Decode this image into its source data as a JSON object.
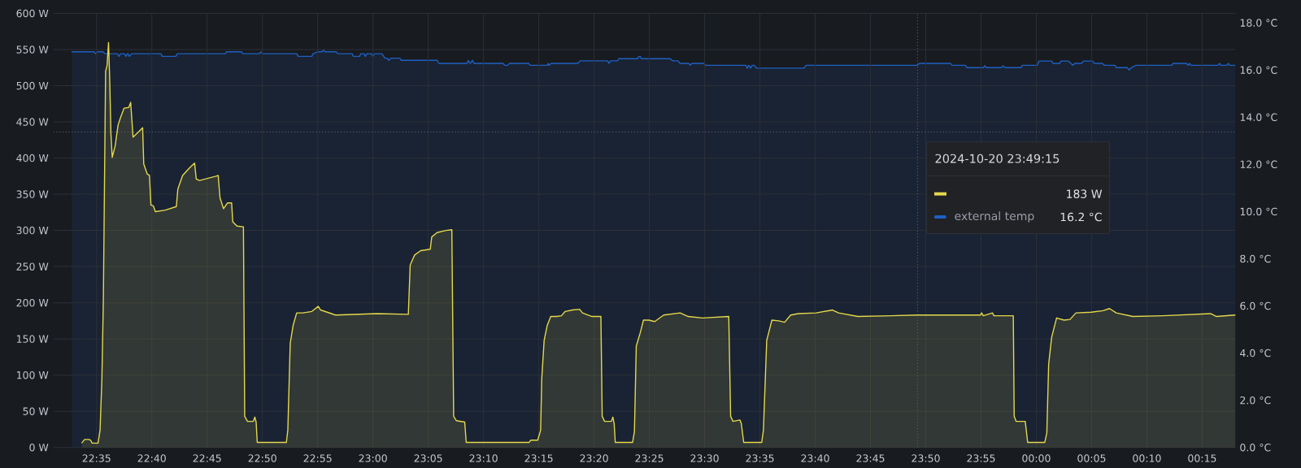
{
  "chart_data": {
    "type": "area",
    "xlim": [
      "2024-10-20T22:31:05",
      "2024-10-21T00:18:00"
    ],
    "xticks": [
      {
        "value": "2024-10-20T22:35",
        "label": "22:35"
      },
      {
        "value": "2024-10-20T22:40",
        "label": "22:40"
      },
      {
        "value": "2024-10-20T22:45",
        "label": "22:45"
      },
      {
        "value": "2024-10-20T22:50",
        "label": "22:50"
      },
      {
        "value": "2024-10-20T22:55",
        "label": "22:55"
      },
      {
        "value": "2024-10-20T23:00",
        "label": "23:00"
      },
      {
        "value": "2024-10-20T23:05",
        "label": "23:05"
      },
      {
        "value": "2024-10-20T23:10",
        "label": "23:10"
      },
      {
        "value": "2024-10-20T23:15",
        "label": "23:15"
      },
      {
        "value": "2024-10-20T23:20",
        "label": "23:20"
      },
      {
        "value": "2024-10-20T23:25",
        "label": "23:25"
      },
      {
        "value": "2024-10-20T23:30",
        "label": "23:30"
      },
      {
        "value": "2024-10-20T23:35",
        "label": "23:35"
      },
      {
        "value": "2024-10-20T23:40",
        "label": "23:40"
      },
      {
        "value": "2024-10-20T23:45",
        "label": "23:45"
      },
      {
        "value": "2024-10-20T23:50",
        "label": "23:50"
      },
      {
        "value": "2024-10-20T23:55",
        "label": "23:55"
      },
      {
        "value": "2024-10-21T00:00",
        "label": "00:00"
      },
      {
        "value": "2024-10-21T00:05",
        "label": "00:05"
      },
      {
        "value": "2024-10-21T00:10",
        "label": "00:10"
      },
      {
        "value": "2024-10-21T00:15",
        "label": "00:15"
      }
    ],
    "ylim": [
      0,
      600
    ],
    "yticks": [
      {
        "value": 0,
        "label": "0 W"
      },
      {
        "value": 50,
        "label": "50 W"
      },
      {
        "value": 100,
        "label": "100 W"
      },
      {
        "value": 150,
        "label": "150 W"
      },
      {
        "value": 200,
        "label": "200 W"
      },
      {
        "value": 250,
        "label": "250 W"
      },
      {
        "value": 300,
        "label": "300 W"
      },
      {
        "value": 350,
        "label": "350 W"
      },
      {
        "value": 400,
        "label": "400 W"
      },
      {
        "value": 450,
        "label": "450 W"
      },
      {
        "value": 500,
        "label": "500 W"
      },
      {
        "value": 550,
        "label": "550 W"
      },
      {
        "value": 600,
        "label": "600 W"
      }
    ],
    "y2lim": [
      0,
      18.4
    ],
    "y2ticks": [
      {
        "value": 0,
        "label": "0.0 °C"
      },
      {
        "value": 2,
        "label": "2.0 °C"
      },
      {
        "value": 4,
        "label": "4.0 °C"
      },
      {
        "value": 6,
        "label": "6.0 °C"
      },
      {
        "value": 8,
        "label": "8.0 °C"
      },
      {
        "value": 10,
        "label": "10.0 °C"
      },
      {
        "value": 12,
        "label": "12.0 °C"
      },
      {
        "value": 14,
        "label": "14.0 °C"
      },
      {
        "value": 16,
        "label": "16.0 °C"
      },
      {
        "value": 18,
        "label": "18.0 °C"
      }
    ],
    "grid": true,
    "legend": "right",
    "annotations": [
      "2024-10-20 23:49:15",
      "183 W",
      "16.2 °C"
    ],
    "ref_lines": [
      {
        "axis": "x",
        "value": "2024-10-20T23:49:15",
        "line_style": "dotted",
        "color": "#60636b"
      },
      {
        "axis": "y",
        "value": 436,
        "line_style": "dotted",
        "color": "#60636b"
      }
    ],
    "series": [
      {
        "color": "#e5d84c",
        "x": [
          "2024-10-20T22:33:39",
          "2024-10-20T22:33:55",
          "2024-10-20T22:34:19",
          "2024-10-20T22:34:28",
          "2024-10-20T22:34:36",
          "2024-10-20T22:35:08",
          "2024-10-20T22:35:19",
          "2024-10-20T22:35:29",
          "2024-10-20T22:35:37",
          "2024-10-20T22:35:49",
          "2024-10-20T22:35:57",
          "2024-10-20T22:36:05",
          "2024-10-20T22:36:11",
          "2024-10-20T22:36:18",
          "2024-10-20T22:36:25",
          "2024-10-20T22:36:41",
          "2024-10-20T22:36:57",
          "2024-10-20T22:37:10",
          "2024-10-20T22:37:29",
          "2024-10-20T22:37:55",
          "2024-10-20T22:38:05",
          "2024-10-20T22:38:18",
          "2024-10-20T22:38:47",
          "2024-10-20T22:39:10",
          "2024-10-20T22:39:16",
          "2024-10-20T22:39:35",
          "2024-10-20T22:39:47",
          "2024-10-20T22:39:55",
          "2024-10-20T22:40:08",
          "2024-10-20T22:40:19",
          "2024-10-20T22:41:13",
          "2024-10-20T22:42:13",
          "2024-10-20T22:42:21",
          "2024-10-20T22:42:47",
          "2024-10-20T22:43:23",
          "2024-10-20T22:43:52",
          "2024-10-20T22:44:01",
          "2024-10-20T22:44:19",
          "2024-10-20T22:45:48",
          "2024-10-20T22:46:00",
          "2024-10-20T22:46:10",
          "2024-10-20T22:46:29",
          "2024-10-20T22:46:50",
          "2024-10-20T22:47:13",
          "2024-10-20T22:47:19",
          "2024-10-20T22:47:42",
          "2024-10-20T22:48:17",
          "2024-10-20T22:48:24",
          "2024-10-20T22:48:39",
          "2024-10-20T22:49:11",
          "2024-10-20T22:49:19",
          "2024-10-20T22:49:26",
          "2024-10-20T22:49:32",
          "2024-10-20T22:52:10",
          "2024-10-20T22:52:18",
          "2024-10-20T22:52:31",
          "2024-10-20T22:52:47",
          "2024-10-20T22:53:06",
          "2024-10-20T22:53:39",
          "2024-10-20T22:54:28",
          "2024-10-20T22:55:03",
          "2024-10-20T22:55:16",
          "2024-10-20T22:56:37",
          "2024-10-20T23:00:24",
          "2024-10-20T23:03:12",
          "2024-10-20T23:03:22",
          "2024-10-20T23:03:46",
          "2024-10-20T23:04:19",
          "2024-10-20T23:05:11",
          "2024-10-20T23:05:19",
          "2024-10-20T23:05:48",
          "2024-10-20T23:06:36",
          "2024-10-20T23:07:08",
          "2024-10-20T23:07:18",
          "2024-10-20T23:07:33",
          "2024-10-20T23:08:18",
          "2024-10-20T23:08:26",
          "2024-10-20T23:14:08",
          "2024-10-20T23:14:16",
          "2024-10-20T23:14:54",
          "2024-10-20T23:15:10",
          "2024-10-20T23:15:16",
          "2024-10-20T23:15:29",
          "2024-10-20T23:15:46",
          "2024-10-20T23:16:05",
          "2024-10-20T23:16:37",
          "2024-10-20T23:17:03",
          "2024-10-20T23:17:23",
          "2024-10-20T23:18:03",
          "2024-10-20T23:18:41",
          "2024-10-20T23:18:57",
          "2024-10-20T23:19:49",
          "2024-10-20T23:20:37",
          "2024-10-20T23:20:44",
          "2024-10-20T23:20:57",
          "2024-10-20T23:21:34",
          "2024-10-20T23:21:42",
          "2024-10-20T23:21:49",
          "2024-10-20T23:21:55",
          "2024-10-20T23:23:29",
          "2024-10-20T23:23:39",
          "2024-10-20T23:23:49",
          "2024-10-20T23:24:11",
          "2024-10-20T23:24:28",
          "2024-10-20T23:24:57",
          "2024-10-20T23:25:29",
          "2024-10-20T23:26:18",
          "2024-10-20T23:27:47",
          "2024-10-20T23:28:31",
          "2024-10-20T23:29:49",
          "2024-10-20T23:32:11",
          "2024-10-20T23:32:21",
          "2024-10-20T23:32:34",
          "2024-10-20T23:33:11",
          "2024-10-20T23:33:19",
          "2024-10-20T23:33:32",
          "2024-10-20T23:35:10",
          "2024-10-20T23:35:19",
          "2024-10-20T23:35:37",
          "2024-10-20T23:36:05",
          "2024-10-20T23:36:42",
          "2024-10-20T23:37:14",
          "2024-10-20T23:37:47",
          "2024-10-20T23:38:28",
          "2024-10-20T23:40:05",
          "2024-10-20T23:41:34",
          "2024-10-20T23:42:07",
          "2024-10-20T23:43:52",
          "2024-10-20T23:46:50",
          "2024-10-20T23:49:15",
          "2024-10-20T23:51:10",
          "2024-10-20T23:54:57",
          "2024-10-20T23:55:03",
          "2024-10-20T23:55:12",
          "2024-10-20T23:56:02",
          "2024-10-20T23:56:10",
          "2024-10-20T23:57:55",
          "2024-10-20T23:58:00",
          "2024-10-20T23:58:11",
          "2024-10-20T23:59:00",
          "2024-10-20T23:59:13",
          "2024-10-21T00:00:46",
          "2024-10-21T00:00:57",
          "2024-10-21T00:01:07",
          "2024-10-21T00:01:23",
          "2024-10-21T00:01:50",
          "2024-10-21T00:02:31",
          "2024-10-21T00:03:03",
          "2024-10-21T00:03:35",
          "2024-10-21T00:04:57",
          "2024-10-21T00:06:02",
          "2024-10-21T00:06:37",
          "2024-10-21T00:07:14",
          "2024-10-21T00:08:44",
          "2024-10-21T00:11:26",
          "2024-10-21T00:15:46",
          "2024-10-21T00:16:18",
          "2024-10-21T00:17:57"
        ],
        "values": [
          6,
          11,
          11,
          10,
          6,
          6,
          24,
          95,
          206,
          520,
          528,
          560,
          512,
          433,
          401,
          417,
          446,
          456,
          469,
          470,
          477,
          429,
          436,
          442,
          392,
          378,
          376,
          335,
          334,
          326,
          328,
          333,
          357,
          376,
          386,
          393,
          371,
          369,
          375,
          376,
          345,
          330,
          338,
          338,
          312,
          306,
          305,
          43,
          36,
          36,
          42,
          35,
          7,
          7,
          24,
          144,
          169,
          186,
          186,
          188,
          195,
          190,
          183,
          185,
          184,
          252,
          266,
          272,
          274,
          291,
          297,
          300,
          301,
          43,
          37,
          35,
          7,
          7,
          10,
          10,
          24,
          95,
          148,
          169,
          181,
          181,
          182,
          188,
          190,
          191,
          186,
          181,
          181,
          43,
          36,
          36,
          42,
          33,
          7,
          7,
          22,
          140,
          159,
          176,
          176,
          174,
          183,
          186,
          181,
          179,
          181,
          43,
          36,
          38,
          33,
          7,
          7,
          24,
          148,
          176,
          175,
          173,
          183,
          185,
          186,
          190,
          186,
          181,
          182,
          183,
          183,
          183,
          186,
          182,
          186,
          182,
          182,
          43,
          36,
          36,
          7,
          7,
          20,
          115,
          152,
          179,
          176,
          177,
          186,
          187,
          189,
          192,
          186,
          181,
          182,
          185,
          181,
          183
        ]
      },
      {
        "name": "external temp",
        "color": "#1f60c4",
        "axis": "y2",
        "x": [
          "2024-10-20T22:32:44",
          "2024-10-20T22:34:47",
          "2024-10-20T22:34:55",
          "2024-10-20T22:35:03",
          "2024-10-20T22:35:35",
          "2024-10-20T22:35:46",
          "2024-10-20T22:36:53",
          "2024-10-20T22:37:02",
          "2024-10-20T22:37:10",
          "2024-10-20T22:37:31",
          "2024-10-20T22:37:39",
          "2024-10-20T22:37:47",
          "2024-10-20T22:37:51",
          "2024-10-20T22:37:58",
          "2024-10-20T22:38:11",
          "2024-10-20T22:40:49",
          "2024-10-20T22:40:57",
          "2024-10-20T22:42:10",
          "2024-10-20T22:42:18",
          "2024-10-20T22:46:37",
          "2024-10-20T22:46:46",
          "2024-10-20T22:48:07",
          "2024-10-20T22:48:14",
          "2024-10-20T22:49:44",
          "2024-10-20T22:49:52",
          "2024-10-20T22:50:02",
          "2024-10-20T22:53:07",
          "2024-10-20T22:53:14",
          "2024-10-20T22:54:28",
          "2024-10-20T22:54:35",
          "2024-10-20T22:55:00",
          "2024-10-20T22:55:24",
          "2024-10-20T22:55:32",
          "2024-10-20T22:55:41",
          "2024-10-20T22:56:41",
          "2024-10-20T22:56:49",
          "2024-10-20T22:58:07",
          "2024-10-20T22:58:14",
          "2024-10-20T22:58:47",
          "2024-10-20T22:58:54",
          "2024-10-20T22:59:12",
          "2024-10-20T22:59:19",
          "2024-10-20T22:59:27",
          "2024-10-20T22:59:51",
          "2024-10-20T23:00:00",
          "2024-10-20T23:00:09",
          "2024-10-20T23:00:49",
          "2024-10-20T23:01:05",
          "2024-10-20T23:01:18",
          "2024-10-20T23:01:26",
          "2024-10-20T23:01:37",
          "2024-10-20T23:02:26",
          "2024-10-20T23:02:34",
          "2024-10-20T23:05:49",
          "2024-10-20T23:05:57",
          "2024-10-20T23:08:31",
          "2024-10-20T23:08:37",
          "2024-10-20T23:08:48",
          "2024-10-20T23:09:00",
          "2024-10-20T23:09:09",
          "2024-10-20T23:11:46",
          "2024-10-20T23:11:55",
          "2024-10-20T23:12:11",
          "2024-10-20T23:12:21",
          "2024-10-20T23:14:05",
          "2024-10-20T23:14:13",
          "2024-10-20T23:15:46",
          "2024-10-20T23:15:51",
          "2024-10-20T23:15:57",
          "2024-10-20T23:16:06",
          "2024-10-20T23:18:32",
          "2024-10-20T23:18:44",
          "2024-10-20T23:21:14",
          "2024-10-20T23:21:21",
          "2024-10-20T23:21:30",
          "2024-10-20T23:22:07",
          "2024-10-20T23:22:14",
          "2024-10-20T23:23:57",
          "2024-10-20T23:24:01",
          "2024-10-20T23:24:12",
          "2024-10-20T23:24:16",
          "2024-10-20T23:26:53",
          "2024-10-20T23:27:07",
          "2024-10-20T23:27:35",
          "2024-10-20T23:27:47",
          "2024-10-20T23:28:35",
          "2024-10-20T23:28:42",
          "2024-10-20T23:28:51",
          "2024-10-20T23:29:57",
          "2024-10-20T23:30:05",
          "2024-10-20T23:33:44",
          "2024-10-20T23:33:51",
          "2024-10-20T23:34:00",
          "2024-10-20T23:34:09",
          "2024-10-20T23:34:18",
          "2024-10-20T23:34:30",
          "2024-10-20T23:34:41",
          "2024-10-20T23:39:00",
          "2024-10-20T23:39:10",
          "2024-10-20T23:49:15",
          "2024-10-20T23:49:24",
          "2024-10-20T23:52:14",
          "2024-10-20T23:52:23",
          "2024-10-20T23:53:35",
          "2024-10-20T23:53:44",
          "2024-10-20T23:55:13",
          "2024-10-20T23:55:21",
          "2024-10-20T23:55:30",
          "2024-10-20T23:56:50",
          "2024-10-20T23:57:00",
          "2024-10-20T23:57:10",
          "2024-10-20T23:58:36",
          "2024-10-20T23:58:44",
          "2024-10-21T00:00:05",
          "2024-10-21T00:00:14",
          "2024-10-21T00:01:23",
          "2024-10-21T00:01:31",
          "2024-10-21T00:02:07",
          "2024-10-21T00:02:14",
          "2024-10-21T00:02:55",
          "2024-10-21T00:03:07",
          "2024-10-21T00:03:19",
          "2024-10-21T00:03:28",
          "2024-10-21T00:04:05",
          "2024-10-21T00:04:16",
          "2024-10-21T00:05:05",
          "2024-10-21T00:05:16",
          "2024-10-21T00:05:58",
          "2024-10-21T00:06:10",
          "2024-10-21T00:07:07",
          "2024-10-21T00:07:14",
          "2024-10-21T00:08:14",
          "2024-10-21T00:08:25",
          "2024-10-21T00:08:35",
          "2024-10-21T00:09:00",
          "2024-10-21T00:12:14",
          "2024-10-21T00:12:23",
          "2024-10-21T00:13:35",
          "2024-10-21T00:13:44",
          "2024-10-21T00:13:51",
          "2024-10-21T00:14:00",
          "2024-10-21T00:16:26",
          "2024-10-21T00:16:34",
          "2024-10-21T00:16:42",
          "2024-10-21T00:17:14",
          "2024-10-21T00:17:23",
          "2024-10-21T00:17:30",
          "2024-10-21T00:17:57"
        ],
        "values": [
          16.77,
          16.77,
          16.69,
          16.77,
          16.77,
          16.69,
          16.69,
          16.58,
          16.69,
          16.69,
          16.58,
          16.69,
          16.69,
          16.58,
          16.69,
          16.69,
          16.58,
          16.58,
          16.69,
          16.69,
          16.77,
          16.77,
          16.69,
          16.69,
          16.77,
          16.69,
          16.69,
          16.58,
          16.58,
          16.69,
          16.77,
          16.77,
          16.86,
          16.77,
          16.77,
          16.69,
          16.69,
          16.58,
          16.58,
          16.69,
          16.69,
          16.58,
          16.69,
          16.69,
          16.58,
          16.69,
          16.69,
          16.5,
          16.5,
          16.41,
          16.5,
          16.5,
          16.41,
          16.41,
          16.28,
          16.28,
          16.41,
          16.28,
          16.41,
          16.28,
          16.28,
          16.2,
          16.2,
          16.28,
          16.28,
          16.2,
          16.2,
          16.28,
          16.2,
          16.28,
          16.28,
          16.39,
          16.39,
          16.28,
          16.39,
          16.39,
          16.48,
          16.48,
          16.57,
          16.57,
          16.48,
          16.48,
          16.39,
          16.39,
          16.28,
          16.28,
          16.2,
          16.28,
          16.28,
          16.2,
          16.2,
          16.08,
          16.2,
          16.08,
          16.2,
          16.2,
          16.08,
          16.08,
          16.2,
          16.2,
          16.28,
          16.28,
          16.2,
          16.2,
          16.1,
          16.1,
          16.18,
          16.1,
          16.1,
          16.18,
          16.1,
          16.1,
          16.2,
          16.2,
          16.38,
          16.38,
          16.28,
          16.28,
          16.38,
          16.38,
          16.28,
          16.2,
          16.28,
          16.28,
          16.38,
          16.38,
          16.28,
          16.28,
          16.2,
          16.2,
          16.1,
          16.1,
          16.0,
          16.1,
          16.2,
          16.2,
          16.28,
          16.28,
          16.2,
          16.28,
          16.2,
          16.2,
          16.28,
          16.2,
          16.2,
          16.28,
          16.2,
          16.2
        ]
      }
    ]
  }
}
